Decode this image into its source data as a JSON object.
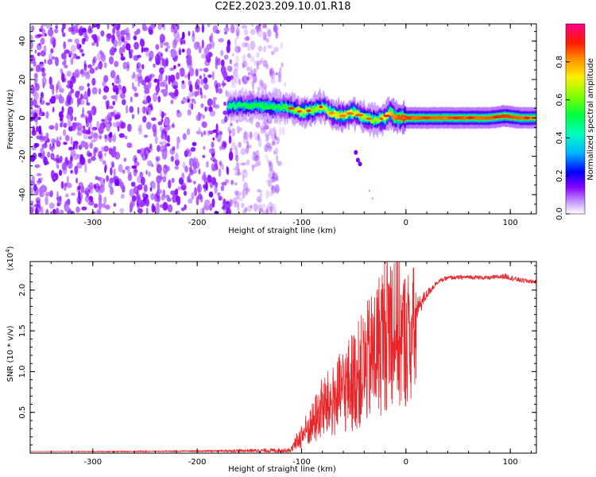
{
  "title": "C2E2.2023.209.10.01.R18",
  "colors": {
    "axis": "#000000",
    "snr_line": "#e8262a",
    "colormap": [
      "#ffffff",
      "#8800ff",
      "#0000ff",
      "#00aaff",
      "#00ff88",
      "#66ff00",
      "#ffee00",
      "#ff2200",
      "#ff0088"
    ]
  },
  "chart_data": [
    {
      "type": "heatmap",
      "name": "spectrogram",
      "xlabel": "Height of straight line (km)",
      "ylabel": "Frequency (Hz)",
      "xlim": [
        -360,
        125
      ],
      "ylim": [
        -50,
        49
      ],
      "xticks": [
        -300,
        -200,
        -100,
        0,
        100
      ],
      "xtick_labels": [
        "-300",
        "-200",
        "-100",
        "0",
        "100"
      ],
      "yticks": [
        -40,
        -20,
        0,
        20,
        40
      ],
      "ytick_labels": [
        "-40",
        "-20",
        "0",
        "20",
        "40"
      ],
      "noise_region": [
        -360,
        -120
      ],
      "signal_track": {
        "x": [
          -170,
          -150,
          -130,
          -110,
          -100,
          -90,
          -80,
          -70,
          -60,
          -50,
          -40,
          -30,
          -20,
          -15,
          -10,
          0,
          20,
          50,
          80,
          95,
          110,
          125
        ],
        "freq": [
          6,
          6.5,
          6,
          5,
          3,
          4,
          6,
          2,
          1,
          3,
          0,
          -1,
          0,
          3,
          0,
          0,
          0,
          0,
          0,
          1,
          0,
          0
        ],
        "amp": [
          0.45,
          0.5,
          0.5,
          0.55,
          0.7,
          0.6,
          0.65,
          0.7,
          0.75,
          0.7,
          0.65,
          0.6,
          0.7,
          0.75,
          0.85,
          0.9,
          0.85,
          0.85,
          0.85,
          0.9,
          0.85,
          0.8
        ]
      },
      "colorbar": {
        "label": "Normalized spectral amplitude",
        "range": [
          0,
          1
        ],
        "ticks": [
          0.0,
          0.2,
          0.4,
          0.6,
          0.8
        ],
        "tick_labels": [
          "0.0",
          "0.2",
          "0.4",
          "0.6",
          "0.8"
        ]
      }
    },
    {
      "type": "line",
      "name": "snr",
      "xlabel": "Height of straight line (km)",
      "ylabel": "SNR (10 * v/v)",
      "yscale_label": "(x10",
      "yscale_exp": "4",
      "yscale_close": ")",
      "xlim": [
        -360,
        125
      ],
      "ylim": [
        0,
        23500
      ],
      "xticks": [
        -300,
        -200,
        -100,
        0,
        100
      ],
      "xtick_labels": [
        "-300",
        "-200",
        "-100",
        "0",
        "100"
      ],
      "yticks": [
        5000,
        10000,
        15000,
        20000
      ],
      "ytick_labels": [
        "0.5",
        "1.0",
        "1.5",
        "2.0"
      ],
      "series": [
        {
          "name": "SNR",
          "x": [
            -360,
            -300,
            -200,
            -110,
            -100,
            -90,
            -80,
            -70,
            -60,
            -50,
            -40,
            -30,
            -20,
            -15,
            -10,
            -5,
            0,
            10,
            20,
            30,
            40,
            60,
            80,
            95,
            110,
            125
          ],
          "y": [
            200,
            200,
            250,
            350,
            1500,
            2500,
            4500,
            5000,
            6500,
            7500,
            9000,
            11000,
            14000,
            16000,
            16500,
            14000,
            15500,
            17500,
            19500,
            21000,
            21500,
            21600,
            21500,
            21700,
            21200,
            21000
          ],
          "jitter": [
            0,
            50,
            80,
            300,
            2000,
            3000,
            4000,
            4500,
            5000,
            6000,
            6500,
            7000,
            7500,
            7000,
            6000,
            5000,
            3500,
            1500,
            600,
            300,
            250,
            250,
            250,
            350,
            300,
            250
          ]
        }
      ]
    }
  ]
}
